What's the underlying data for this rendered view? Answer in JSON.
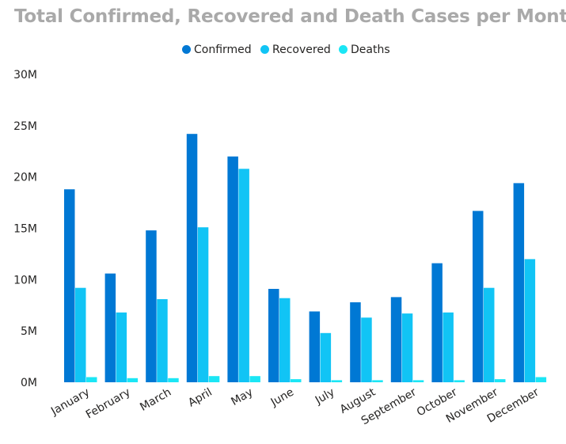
{
  "chart_data": {
    "type": "bar",
    "title": "Total Confirmed, Recovered and Death Cases per Month",
    "categories": [
      "January",
      "February",
      "March",
      "April",
      "May",
      "June",
      "July",
      "August",
      "September",
      "October",
      "November",
      "December"
    ],
    "series": [
      {
        "name": "Confirmed",
        "color": "#0078d4",
        "values": [
          18.8,
          10.6,
          14.8,
          24.2,
          22.0,
          9.1,
          6.9,
          7.8,
          8.3,
          11.6,
          16.7,
          19.4
        ]
      },
      {
        "name": "Recovered",
        "color": "#11c4f5",
        "values": [
          9.2,
          6.8,
          8.1,
          15.1,
          20.8,
          8.2,
          4.8,
          6.3,
          6.7,
          6.8,
          9.2,
          12.0
        ]
      },
      {
        "name": "Deaths",
        "color": "#1be6f5",
        "values": [
          0.5,
          0.4,
          0.4,
          0.6,
          0.6,
          0.3,
          0.2,
          0.2,
          0.2,
          0.2,
          0.3,
          0.5
        ]
      }
    ],
    "value_unit": "M",
    "yticks": [
      "0M",
      "5M",
      "10M",
      "15M",
      "20M",
      "25M",
      "30M"
    ],
    "ylim": [
      0,
      30
    ],
    "xlabel": "",
    "ylabel": "",
    "legend_position": "top-center",
    "grid": false
  }
}
